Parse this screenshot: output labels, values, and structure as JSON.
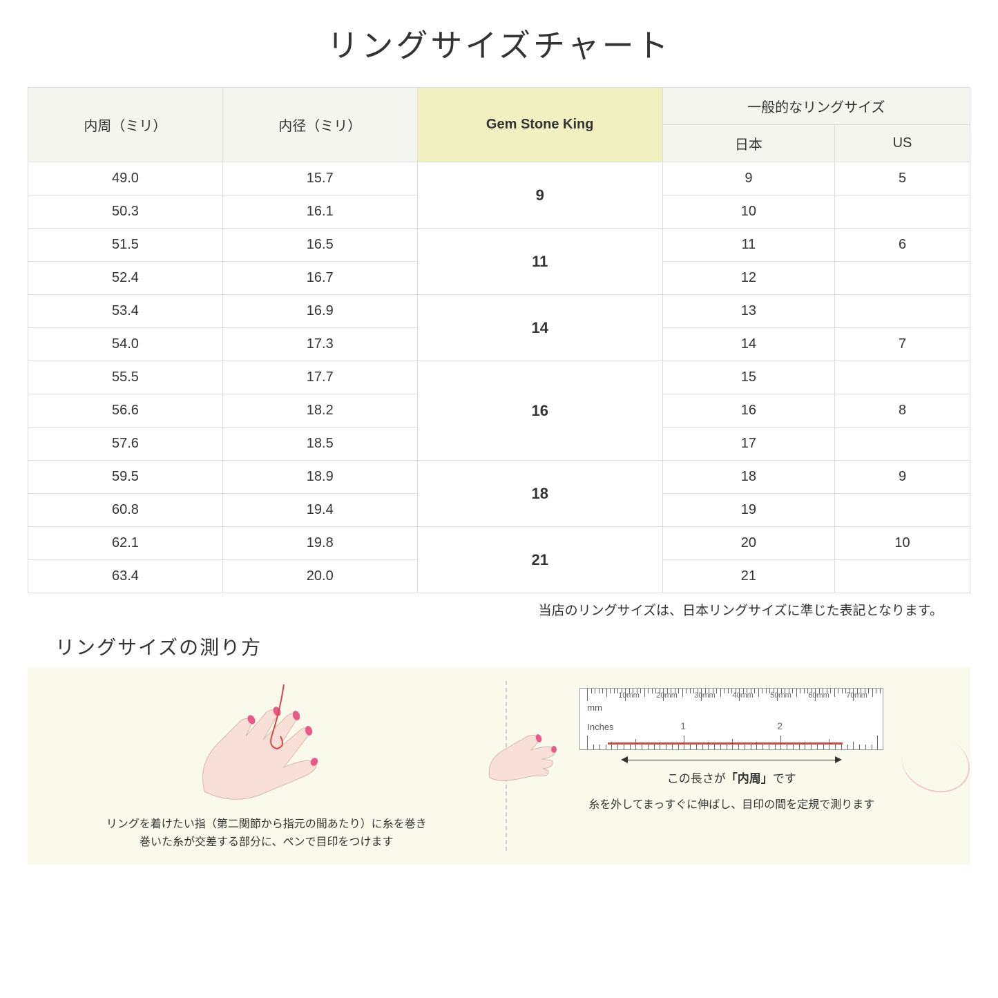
{
  "title": "リングサイズチャート",
  "headers": {
    "circumference": "内周（ミリ）",
    "diameter": "内径（ミリ）",
    "gsk": "Gem Stone King",
    "general": "一般的なリングサイズ",
    "japan": "日本",
    "us": "US"
  },
  "groups": [
    {
      "gsk": "9",
      "rows": [
        [
          "49.0",
          "15.7",
          "9",
          "5"
        ],
        [
          "50.3",
          "16.1",
          "10",
          ""
        ]
      ]
    },
    {
      "gsk": "11",
      "rows": [
        [
          "51.5",
          "16.5",
          "11",
          "6"
        ],
        [
          "52.4",
          "16.7",
          "12",
          ""
        ]
      ]
    },
    {
      "gsk": "14",
      "rows": [
        [
          "53.4",
          "16.9",
          "13",
          ""
        ],
        [
          "54.0",
          "17.3",
          "14",
          "7"
        ]
      ]
    },
    {
      "gsk": "16",
      "rows": [
        [
          "55.5",
          "17.7",
          "15",
          ""
        ],
        [
          "56.6",
          "18.2",
          "16",
          "8"
        ],
        [
          "57.6",
          "18.5",
          "17",
          ""
        ]
      ]
    },
    {
      "gsk": "18",
      "rows": [
        [
          "59.5",
          "18.9",
          "18",
          "9"
        ],
        [
          "60.8",
          "19.4",
          "19",
          ""
        ]
      ]
    },
    {
      "gsk": "21",
      "rows": [
        [
          "62.1",
          "19.8",
          "20",
          "10"
        ],
        [
          "63.4",
          "20.0",
          "21",
          ""
        ]
      ]
    }
  ],
  "note": "当店のリングサイズは、日本リングサイズに準じた表記となります。",
  "measure": {
    "title": "リングサイズの測り方",
    "left_text": "リングを着けたい指（第二関節から指元の間あたり）に糸を巻き\n巻いた糸が交差する部分に、ペンで目印をつけます",
    "right_text": "糸を外してまっすぐに伸ばし、目印の間を定規で測ります",
    "arrow_label_pre": "この長さが",
    "arrow_label_bold": "「内周」",
    "arrow_label_post": "です",
    "ruler_mm": [
      "10mm",
      "20mm",
      "30mm",
      "40mm",
      "50mm",
      "60mm",
      "70mm"
    ],
    "ruler_mm_unit": "mm",
    "ruler_in_unit": "Inches",
    "ruler_in": [
      "1",
      "2"
    ]
  },
  "colors": {
    "header_bg": "#f5f5f0",
    "highlight_bg": "#f0f0c0",
    "border": "#dddddd",
    "measure_bg": "#fafaec",
    "hand_fill": "#f8e0d8",
    "nail": "#e85a8a",
    "thread": "#d44444"
  }
}
